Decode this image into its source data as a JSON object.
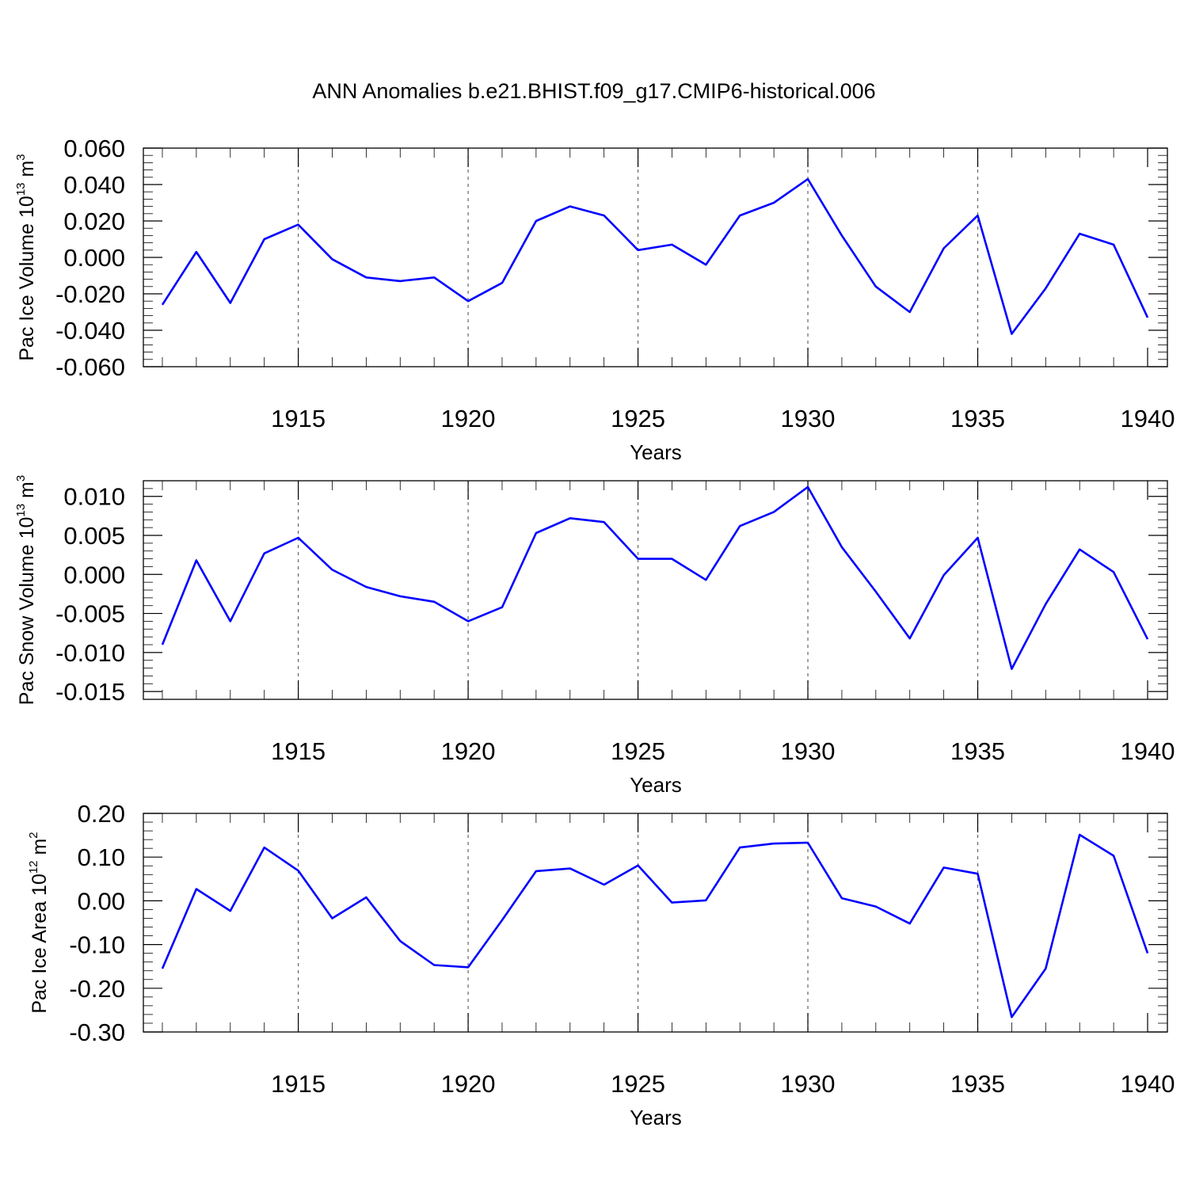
{
  "title": "ANN Anomalies b.e21.BHIST.f09_g17.CMIP6-historical.006",
  "series_color": "#0000ff",
  "chart_data": [
    {
      "type": "line",
      "ylabel": {
        "main": "Pac Ice Volume 10",
        "exp": "13",
        "unit": " m",
        "unit_exp": "3"
      },
      "xlabel": "Years",
      "xlim": [
        1911,
        1940
      ],
      "ylim": [
        -0.06,
        0.06
      ],
      "yticks": [
        -0.06,
        -0.04,
        -0.02,
        0.0,
        0.02,
        0.04,
        0.06
      ],
      "ytick_labels": [
        "-0.060",
        "-0.040",
        "-0.020",
        "0.000",
        "0.020",
        "0.040",
        "0.060"
      ],
      "xticks": [
        1915,
        1920,
        1925,
        1930,
        1935,
        1940
      ],
      "xtick_labels": [
        "1915",
        "1920",
        "1925",
        "1930",
        "1935",
        "1940"
      ],
      "grid": "vertical dashed at major x ticks",
      "x": [
        1911,
        1912,
        1913,
        1914,
        1915,
        1916,
        1917,
        1918,
        1919,
        1920,
        1921,
        1922,
        1923,
        1924,
        1925,
        1926,
        1927,
        1928,
        1929,
        1930,
        1931,
        1932,
        1933,
        1934,
        1935,
        1936,
        1937,
        1938,
        1939,
        1940
      ],
      "values": [
        -0.026,
        0.003,
        -0.025,
        0.01,
        0.018,
        -0.001,
        -0.011,
        -0.013,
        -0.011,
        -0.024,
        -0.014,
        0.02,
        0.028,
        0.023,
        0.004,
        0.007,
        -0.004,
        0.023,
        0.03,
        0.043,
        0.012,
        -0.016,
        -0.03,
        0.005,
        0.023,
        -0.042,
        -0.017,
        0.013,
        0.007,
        -0.033
      ]
    },
    {
      "type": "line",
      "ylabel": {
        "main": "Pac Snow Volume 10",
        "exp": "13",
        "unit": " m",
        "unit_exp": "3"
      },
      "xlabel": "Years",
      "xlim": [
        1911,
        1940
      ],
      "ylim": [
        -0.016,
        0.012
      ],
      "yticks": [
        -0.015,
        -0.01,
        -0.005,
        0.0,
        0.005,
        0.01
      ],
      "ytick_labels": [
        "-0.015",
        "-0.010",
        "-0.005",
        "0.000",
        "0.005",
        "0.010"
      ],
      "xticks": [
        1915,
        1920,
        1925,
        1930,
        1935,
        1940
      ],
      "xtick_labels": [
        "1915",
        "1920",
        "1925",
        "1930",
        "1935",
        "1940"
      ],
      "grid": "vertical dashed at major x ticks",
      "x": [
        1911,
        1912,
        1913,
        1914,
        1915,
        1916,
        1917,
        1918,
        1919,
        1920,
        1921,
        1922,
        1923,
        1924,
        1925,
        1926,
        1927,
        1928,
        1929,
        1930,
        1931,
        1932,
        1933,
        1934,
        1935,
        1936,
        1937,
        1938,
        1939,
        1940
      ],
      "values": [
        -0.009,
        0.0018,
        -0.006,
        0.0027,
        0.0047,
        0.0006,
        -0.0016,
        -0.0028,
        -0.0035,
        -0.006,
        -0.0042,
        0.0053,
        0.0072,
        0.0067,
        0.002,
        0.002,
        -0.0007,
        0.0062,
        0.008,
        0.0112,
        0.0035,
        -0.0022,
        -0.0082,
        -0.0001,
        0.0047,
        -0.0121,
        -0.0038,
        0.0032,
        0.0003,
        -0.0083
      ]
    },
    {
      "type": "line",
      "ylabel": {
        "main": "Pac Ice Area 10",
        "exp": "12",
        "unit": " m",
        "unit_exp": "2"
      },
      "xlabel": "Years",
      "xlim": [
        1911,
        1940
      ],
      "ylim": [
        -0.3,
        0.2
      ],
      "yticks": [
        -0.3,
        -0.2,
        -0.1,
        0.0,
        0.1,
        0.2
      ],
      "ytick_labels": [
        "-0.30",
        "-0.20",
        "-0.10",
        "0.00",
        "0.10",
        "0.20"
      ],
      "xticks": [
        1915,
        1920,
        1925,
        1930,
        1935,
        1940
      ],
      "xtick_labels": [
        "1915",
        "1920",
        "1925",
        "1930",
        "1935",
        "1940"
      ],
      "grid": "vertical dashed at major x ticks",
      "x": [
        1911,
        1912,
        1913,
        1914,
        1915,
        1916,
        1917,
        1918,
        1919,
        1920,
        1921,
        1922,
        1923,
        1924,
        1925,
        1926,
        1927,
        1928,
        1929,
        1930,
        1931,
        1932,
        1933,
        1934,
        1935,
        1936,
        1937,
        1938,
        1939,
        1940
      ],
      "values": [
        -0.155,
        0.027,
        -0.023,
        0.122,
        0.069,
        -0.04,
        0.008,
        -0.092,
        -0.147,
        -0.152,
        -0.044,
        0.068,
        0.074,
        0.037,
        0.081,
        -0.004,
        0.001,
        0.122,
        0.131,
        0.133,
        0.006,
        -0.013,
        -0.052,
        0.076,
        0.062,
        -0.266,
        -0.155,
        0.151,
        0.103,
        -0.12
      ]
    }
  ]
}
